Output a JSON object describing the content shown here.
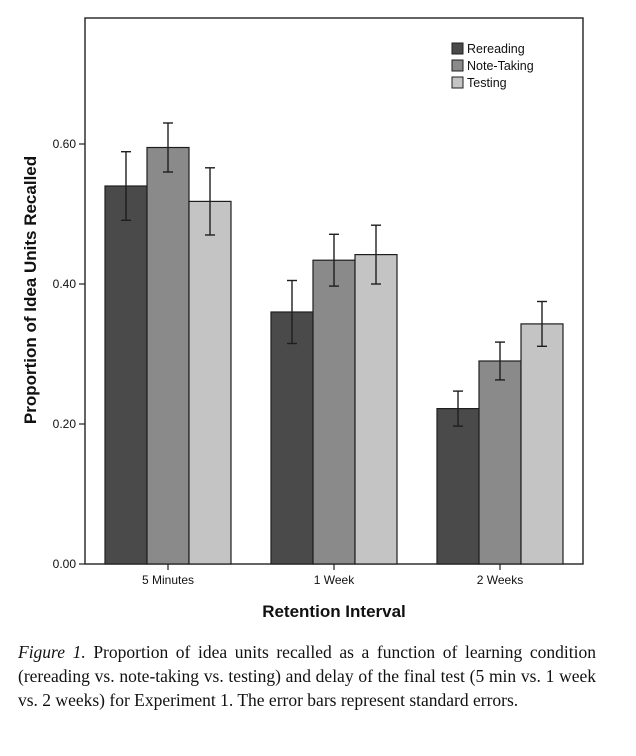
{
  "chart_data": {
    "type": "bar",
    "title": "",
    "xlabel": "Retention Interval",
    "ylabel": "Proportion of Idea Units Recalled",
    "ylim": [
      0,
      0.78
    ],
    "yticks": [
      "0.00",
      "0.20",
      "0.40",
      "0.60"
    ],
    "ytick_values": [
      0,
      0.2,
      0.4,
      0.6
    ],
    "categories": [
      "5 Minutes",
      "1 Week",
      "2 Weeks"
    ],
    "grid": false,
    "legend_position": "top-right",
    "series": [
      {
        "name": "Rereading",
        "color": "#4a4a4a",
        "values": [
          0.54,
          0.36,
          0.222
        ],
        "errors": [
          0.049,
          0.045,
          0.025
        ]
      },
      {
        "name": "Note-Taking",
        "color": "#8a8a8a",
        "values": [
          0.595,
          0.434,
          0.29
        ],
        "errors": [
          0.035,
          0.037,
          0.027
        ]
      },
      {
        "name": "Testing",
        "color": "#c4c4c4",
        "values": [
          0.518,
          0.442,
          0.343
        ],
        "errors": [
          0.048,
          0.042,
          0.032
        ]
      }
    ]
  },
  "caption": {
    "label": "Figure 1.",
    "text": "Proportion of idea units recalled as a function of learning condition (rereading vs. note-taking vs. testing) and delay of the final test (5 min vs. 1 week vs. 2 weeks) for Experiment 1. The error bars represent standard errors."
  }
}
